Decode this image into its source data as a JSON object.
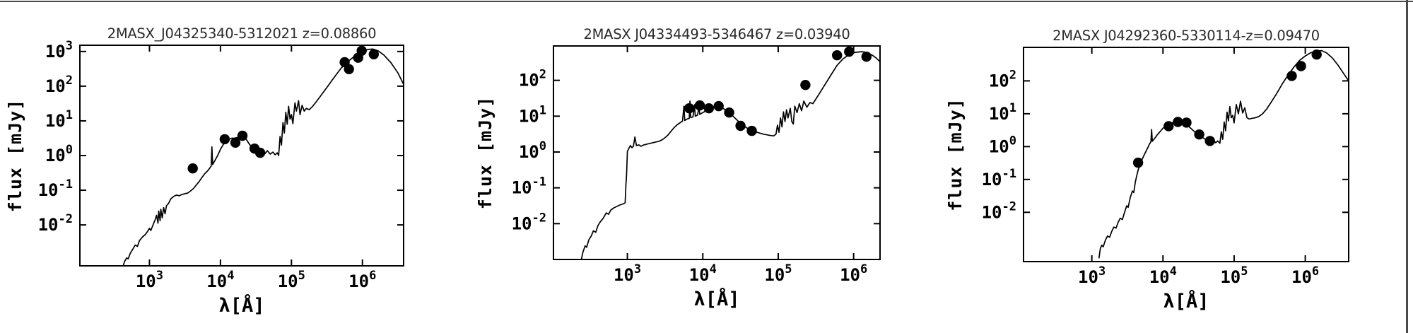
{
  "page": {
    "background": "#ffffff",
    "rule_color": "#4a4a4a"
  },
  "chart_data": [
    {
      "type": "line",
      "title": "2MASX_J04325340-5312021 z=0.08860",
      "xlabel": "λ[Å]",
      "ylabel": "flux [mJy]",
      "xscale": "log",
      "yscale": "log",
      "grid": false,
      "legend": "none",
      "line_color": "#000000",
      "marker_color": "#000000",
      "xlim_log10": [
        2.02,
        6.58
      ],
      "ylim_log10": [
        -3.18,
        3.18
      ],
      "xtick_exponents": [
        3,
        4,
        5,
        6
      ],
      "ytick_exponents": [
        3,
        2,
        1,
        0,
        -1,
        -2
      ],
      "model_curve_log10": [
        [
          2.63,
          -3.18
        ],
        [
          2.65,
          -3.05
        ],
        [
          2.68,
          -2.95
        ],
        [
          2.7,
          -2.98
        ],
        [
          2.73,
          -2.82
        ],
        [
          2.76,
          -2.72
        ],
        [
          2.8,
          -2.58
        ],
        [
          2.83,
          -2.62
        ],
        [
          2.86,
          -2.45
        ],
        [
          2.9,
          -2.35
        ],
        [
          2.94,
          -2.28
        ],
        [
          2.97,
          -2.2
        ],
        [
          3.0,
          -2.1
        ],
        [
          3.02,
          -2.16
        ],
        [
          3.05,
          -2.0
        ],
        [
          3.08,
          -1.85
        ],
        [
          3.1,
          -1.72
        ],
        [
          3.12,
          -1.95
        ],
        [
          3.13,
          -1.6
        ],
        [
          3.15,
          -1.88
        ],
        [
          3.16,
          -1.55
        ],
        [
          3.18,
          -1.8
        ],
        [
          3.2,
          -1.5
        ],
        [
          3.22,
          -1.68
        ],
        [
          3.24,
          -1.45
        ],
        [
          3.27,
          -1.38
        ],
        [
          3.3,
          -1.25
        ],
        [
          3.34,
          -1.18
        ],
        [
          3.38,
          -1.14
        ],
        [
          3.42,
          -1.16
        ],
        [
          3.46,
          -1.12
        ],
        [
          3.5,
          -1.1
        ],
        [
          3.54,
          -1.08
        ],
        [
          3.58,
          -1.02
        ],
        [
          3.62,
          -0.95
        ],
        [
          3.66,
          -0.85
        ],
        [
          3.7,
          -0.75
        ],
        [
          3.74,
          -0.63
        ],
        [
          3.78,
          -0.52
        ],
        [
          3.82,
          -0.44
        ],
        [
          3.85,
          -0.36
        ],
        [
          3.87,
          -0.3
        ],
        [
          3.88,
          0.25
        ],
        [
          3.89,
          -0.26
        ],
        [
          3.92,
          -0.15
        ],
        [
          3.96,
          0.0
        ],
        [
          4.0,
          0.18
        ],
        [
          4.04,
          0.32
        ],
        [
          4.08,
          0.42
        ],
        [
          4.12,
          0.47
        ],
        [
          4.16,
          0.5
        ],
        [
          4.2,
          0.5
        ],
        [
          4.24,
          0.52
        ],
        [
          4.28,
          0.55
        ],
        [
          4.32,
          0.55
        ],
        [
          4.36,
          0.48
        ],
        [
          4.4,
          0.35
        ],
        [
          4.44,
          0.24
        ],
        [
          4.47,
          0.3
        ],
        [
          4.5,
          0.18
        ],
        [
          4.53,
          0.26
        ],
        [
          4.56,
          0.12
        ],
        [
          4.6,
          0.18
        ],
        [
          4.63,
          0.06
        ],
        [
          4.66,
          0.14
        ],
        [
          4.7,
          0.04
        ],
        [
          4.74,
          0.1
        ],
        [
          4.77,
          0.02
        ],
        [
          4.8,
          0.08
        ],
        [
          4.82,
          0.0
        ],
        [
          4.84,
          0.55
        ],
        [
          4.86,
          0.3
        ],
        [
          4.88,
          0.95
        ],
        [
          4.9,
          0.65
        ],
        [
          4.92,
          1.25
        ],
        [
          4.94,
          0.9
        ],
        [
          4.96,
          1.42
        ],
        [
          4.98,
          1.05
        ],
        [
          5.0,
          1.18
        ],
        [
          5.02,
          0.92
        ],
        [
          5.05,
          1.52
        ],
        [
          5.07,
          1.28
        ],
        [
          5.1,
          1.58
        ],
        [
          5.12,
          1.18
        ],
        [
          5.15,
          1.45
        ],
        [
          5.18,
          1.28
        ],
        [
          5.21,
          1.36
        ],
        [
          5.25,
          1.32
        ],
        [
          5.3,
          1.42
        ],
        [
          5.36,
          1.58
        ],
        [
          5.44,
          1.8
        ],
        [
          5.52,
          2.02
        ],
        [
          5.6,
          2.25
        ],
        [
          5.7,
          2.52
        ],
        [
          5.8,
          2.72
        ],
        [
          5.9,
          2.88
        ],
        [
          6.0,
          3.0
        ],
        [
          6.08,
          3.06
        ],
        [
          6.15,
          3.07
        ],
        [
          6.22,
          3.02
        ],
        [
          6.3,
          2.9
        ],
        [
          6.4,
          2.68
        ],
        [
          6.5,
          2.38
        ],
        [
          6.58,
          2.05
        ]
      ],
      "photometry_points_log10": [
        [
          3.61,
          -0.37
        ],
        [
          4.06,
          0.47
        ],
        [
          4.21,
          0.37
        ],
        [
          4.31,
          0.57
        ],
        [
          4.48,
          0.2
        ],
        [
          4.56,
          0.08
        ],
        [
          5.75,
          2.69
        ],
        [
          5.81,
          2.49
        ],
        [
          5.94,
          2.82
        ],
        [
          5.99,
          3.02
        ],
        [
          6.16,
          2.92
        ]
      ]
    },
    {
      "type": "line",
      "title": "2MASX J04334493-5346467 z=0.03940",
      "xlabel": "λ[Å]",
      "ylabel": "flux [mJy]",
      "xscale": "log",
      "yscale": "log",
      "grid": false,
      "legend": "none",
      "line_color": "#000000",
      "marker_color": "#000000",
      "xlim_log10": [
        2.02,
        6.35
      ],
      "ylim_log10": [
        -3.0,
        2.96
      ],
      "xtick_exponents": [
        3,
        4,
        5,
        6
      ],
      "ytick_exponents": [
        2,
        1,
        0,
        -1,
        -2
      ],
      "model_curve_log10": [
        [
          2.39,
          -3.0
        ],
        [
          2.41,
          -2.8
        ],
        [
          2.44,
          -2.62
        ],
        [
          2.46,
          -2.66
        ],
        [
          2.49,
          -2.45
        ],
        [
          2.52,
          -2.35
        ],
        [
          2.55,
          -2.2
        ],
        [
          2.58,
          -2.24
        ],
        [
          2.61,
          -2.05
        ],
        [
          2.64,
          -1.95
        ],
        [
          2.68,
          -1.85
        ],
        [
          2.72,
          -1.7
        ],
        [
          2.75,
          -1.74
        ],
        [
          2.78,
          -1.62
        ],
        [
          2.82,
          -1.56
        ],
        [
          2.86,
          -1.52
        ],
        [
          2.9,
          -1.48
        ],
        [
          2.94,
          -1.45
        ],
        [
          2.97,
          -1.42
        ],
        [
          2.98,
          -0.95
        ],
        [
          2.99,
          -0.6
        ],
        [
          3.0,
          0.02
        ],
        [
          3.02,
          0.1
        ],
        [
          3.04,
          0.18
        ],
        [
          3.06,
          0.12
        ],
        [
          3.08,
          0.16
        ],
        [
          3.1,
          0.42
        ],
        [
          3.12,
          0.18
        ],
        [
          3.15,
          0.2
        ],
        [
          3.18,
          0.16
        ],
        [
          3.22,
          0.2
        ],
        [
          3.26,
          0.22
        ],
        [
          3.3,
          0.24
        ],
        [
          3.34,
          0.26
        ],
        [
          3.38,
          0.28
        ],
        [
          3.42,
          0.3
        ],
        [
          3.46,
          0.34
        ],
        [
          3.5,
          0.4
        ],
        [
          3.54,
          0.48
        ],
        [
          3.58,
          0.58
        ],
        [
          3.62,
          0.68
        ],
        [
          3.66,
          0.76
        ],
        [
          3.7,
          0.82
        ],
        [
          3.73,
          0.86
        ],
        [
          3.75,
          1.28
        ],
        [
          3.76,
          0.88
        ],
        [
          3.79,
          0.92
        ],
        [
          3.82,
          0.94
        ],
        [
          3.83,
          1.42
        ],
        [
          3.84,
          0.96
        ],
        [
          3.87,
          0.98
        ],
        [
          3.89,
          1.32
        ],
        [
          3.9,
          1.0
        ],
        [
          3.93,
          1.03
        ],
        [
          3.95,
          1.26
        ],
        [
          3.96,
          1.05
        ],
        [
          4.0,
          1.1
        ],
        [
          4.05,
          1.16
        ],
        [
          4.1,
          1.21
        ],
        [
          4.15,
          1.25
        ],
        [
          4.2,
          1.27
        ],
        [
          4.25,
          1.24
        ],
        [
          4.3,
          1.18
        ],
        [
          4.35,
          1.1
        ],
        [
          4.4,
          1.0
        ],
        [
          4.45,
          0.9
        ],
        [
          4.5,
          0.8
        ],
        [
          4.55,
          0.72
        ],
        [
          4.6,
          0.65
        ],
        [
          4.65,
          0.6
        ],
        [
          4.7,
          0.56
        ],
        [
          4.75,
          0.53
        ],
        [
          4.8,
          0.5
        ],
        [
          4.85,
          0.48
        ],
        [
          4.9,
          0.46
        ],
        [
          4.94,
          0.45
        ],
        [
          4.97,
          0.5
        ],
        [
          4.99,
          0.75
        ],
        [
          5.01,
          0.55
        ],
        [
          5.03,
          0.95
        ],
        [
          5.05,
          0.7
        ],
        [
          5.07,
          1.12
        ],
        [
          5.09,
          0.85
        ],
        [
          5.11,
          1.18
        ],
        [
          5.13,
          0.95
        ],
        [
          5.16,
          1.22
        ],
        [
          5.18,
          0.85
        ],
        [
          5.2,
          0.78
        ],
        [
          5.22,
          1.28
        ],
        [
          5.25,
          1.1
        ],
        [
          5.28,
          1.35
        ],
        [
          5.31,
          1.15
        ],
        [
          5.34,
          1.42
        ],
        [
          5.38,
          1.25
        ],
        [
          5.42,
          1.38
        ],
        [
          5.46,
          1.35
        ],
        [
          5.5,
          1.48
        ],
        [
          5.56,
          1.68
        ],
        [
          5.62,
          1.88
        ],
        [
          5.7,
          2.15
        ],
        [
          5.78,
          2.42
        ],
        [
          5.86,
          2.6
        ],
        [
          5.94,
          2.72
        ],
        [
          6.02,
          2.78
        ],
        [
          6.1,
          2.8
        ],
        [
          6.18,
          2.78
        ],
        [
          6.25,
          2.7
        ],
        [
          6.3,
          2.62
        ],
        [
          6.35,
          2.52
        ]
      ],
      "photometry_points_log10": [
        [
          3.82,
          1.22
        ],
        [
          3.96,
          1.3
        ],
        [
          4.08,
          1.22
        ],
        [
          4.21,
          1.28
        ],
        [
          4.35,
          1.1
        ],
        [
          4.5,
          0.73
        ],
        [
          4.65,
          0.59
        ],
        [
          5.36,
          1.87
        ],
        [
          5.78,
          2.7
        ],
        [
          5.94,
          2.8
        ],
        [
          6.17,
          2.66
        ]
      ]
    },
    {
      "type": "line",
      "title": "2MASX J04292360-5330114-z=0.09470",
      "xlabel": "λ[Å]",
      "ylabel": "flux [mJy]",
      "xscale": "log",
      "yscale": "log",
      "grid": false,
      "legend": "none",
      "line_color": "#000000",
      "marker_color": "#000000",
      "xlim_log10": [
        2.04,
        6.61
      ],
      "ylim_log10": [
        -3.5,
        3.02
      ],
      "xtick_exponents": [
        3,
        4,
        5,
        6
      ],
      "ytick_exponents": [
        2,
        1,
        0,
        -1,
        -2
      ],
      "model_curve_log10": [
        [
          3.1,
          -3.4
        ],
        [
          3.12,
          -3.1
        ],
        [
          3.14,
          -3.0
        ],
        [
          3.16,
          -3.05
        ],
        [
          3.19,
          -2.85
        ],
        [
          3.22,
          -2.72
        ],
        [
          3.25,
          -2.76
        ],
        [
          3.28,
          -2.58
        ],
        [
          3.31,
          -2.45
        ],
        [
          3.34,
          -2.48
        ],
        [
          3.37,
          -2.3
        ],
        [
          3.4,
          -2.18
        ],
        [
          3.43,
          -2.22
        ],
        [
          3.46,
          -2.0
        ],
        [
          3.49,
          -1.8
        ],
        [
          3.51,
          -1.85
        ],
        [
          3.54,
          -1.55
        ],
        [
          3.57,
          -1.35
        ],
        [
          3.59,
          -1.4
        ],
        [
          3.61,
          -1.1
        ],
        [
          3.63,
          -0.9
        ],
        [
          3.65,
          -0.72
        ],
        [
          3.67,
          -0.58
        ],
        [
          3.7,
          -0.42
        ],
        [
          3.73,
          -0.28
        ],
        [
          3.76,
          -0.15
        ],
        [
          3.79,
          -0.02
        ],
        [
          3.81,
          0.08
        ],
        [
          3.83,
          0.14
        ],
        [
          3.84,
          0.52
        ],
        [
          3.85,
          0.16
        ],
        [
          3.88,
          0.24
        ],
        [
          3.92,
          0.36
        ],
        [
          3.96,
          0.46
        ],
        [
          4.0,
          0.56
        ],
        [
          4.05,
          0.64
        ],
        [
          4.1,
          0.7
        ],
        [
          4.15,
          0.74
        ],
        [
          4.2,
          0.77
        ],
        [
          4.25,
          0.76
        ],
        [
          4.3,
          0.72
        ],
        [
          4.35,
          0.64
        ],
        [
          4.4,
          0.54
        ],
        [
          4.45,
          0.44
        ],
        [
          4.5,
          0.36
        ],
        [
          4.55,
          0.28
        ],
        [
          4.6,
          0.22
        ],
        [
          4.64,
          0.18
        ],
        [
          4.68,
          0.15
        ],
        [
          4.71,
          0.2
        ],
        [
          4.74,
          0.12
        ],
        [
          4.77,
          0.17
        ],
        [
          4.8,
          0.1
        ],
        [
          4.82,
          0.45
        ],
        [
          4.84,
          0.22
        ],
        [
          4.86,
          0.75
        ],
        [
          4.88,
          0.48
        ],
        [
          4.9,
          1.05
        ],
        [
          4.92,
          0.78
        ],
        [
          4.94,
          1.22
        ],
        [
          4.96,
          0.88
        ],
        [
          4.98,
          0.95
        ],
        [
          5.0,
          0.72
        ],
        [
          5.03,
          1.28
        ],
        [
          5.06,
          1.0
        ],
        [
          5.09,
          1.38
        ],
        [
          5.12,
          1.02
        ],
        [
          5.15,
          1.18
        ],
        [
          5.18,
          0.88
        ],
        [
          5.21,
          0.84
        ],
        [
          5.25,
          0.86
        ],
        [
          5.3,
          0.88
        ],
        [
          5.35,
          0.92
        ],
        [
          5.4,
          1.0
        ],
        [
          5.46,
          1.15
        ],
        [
          5.52,
          1.35
        ],
        [
          5.6,
          1.62
        ],
        [
          5.68,
          1.92
        ],
        [
          5.76,
          2.18
        ],
        [
          5.84,
          2.42
        ],
        [
          5.92,
          2.62
        ],
        [
          6.0,
          2.76
        ],
        [
          6.08,
          2.86
        ],
        [
          6.16,
          2.91
        ],
        [
          6.23,
          2.92
        ],
        [
          6.3,
          2.85
        ],
        [
          6.38,
          2.7
        ],
        [
          6.46,
          2.48
        ],
        [
          6.54,
          2.22
        ],
        [
          6.61,
          2.0
        ]
      ],
      "photometry_points_log10": [
        [
          3.65,
          -0.49
        ],
        [
          4.08,
          0.62
        ],
        [
          4.21,
          0.75
        ],
        [
          4.33,
          0.73
        ],
        [
          4.51,
          0.37
        ],
        [
          4.66,
          0.17
        ],
        [
          5.81,
          2.15
        ],
        [
          5.94,
          2.45
        ],
        [
          6.16,
          2.8
        ]
      ]
    }
  ]
}
